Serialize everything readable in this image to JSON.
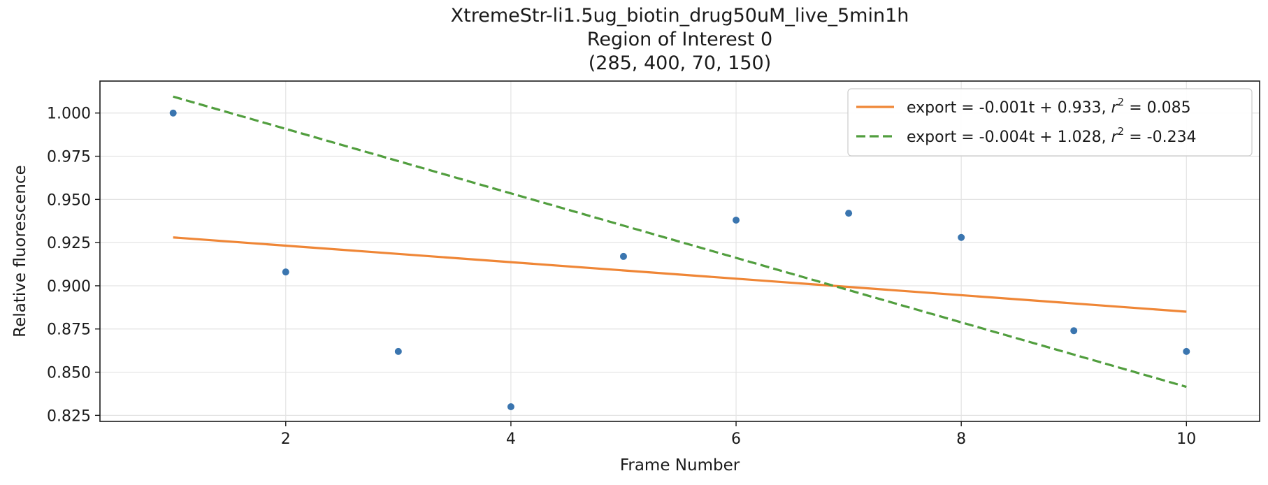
{
  "chart_data": {
    "type": "scatter",
    "title": [
      "XtremeStr-li1.5ug_biotin_drug50uM_live_5min1h",
      "Region of Interest 0",
      "(285, 400, 70, 150)"
    ],
    "xlabel": "Frame Number",
    "ylabel": "Relative fluorescence",
    "xlim": [
      0.35,
      10.65
    ],
    "ylim": [
      0.8215,
      1.0185
    ],
    "xticks": [
      2,
      4,
      6,
      8,
      10
    ],
    "yticks": [
      0.825,
      0.85,
      0.875,
      0.9,
      0.925,
      0.95,
      0.975,
      1.0
    ],
    "ytick_labels": [
      "0.825",
      "0.850",
      "0.875",
      "0.900",
      "0.925",
      "0.950",
      "0.975",
      "1.000"
    ],
    "grid": true,
    "legend_position": "top-right",
    "points": {
      "color": "#3a75af",
      "x": [
        1,
        2,
        3,
        4,
        5,
        6,
        7,
        8,
        9,
        10
      ],
      "y": [
        1.0,
        0.908,
        0.862,
        0.83,
        0.917,
        0.938,
        0.942,
        0.928,
        0.874,
        0.862
      ]
    },
    "series": [
      {
        "label_main": "export = -0.001t + 0.933, ",
        "label_r": "r",
        "label_sup": "2",
        "label_tail": " = 0.085",
        "color": "#ef8636",
        "dash": "solid",
        "x": [
          1,
          10
        ],
        "y": [
          0.928,
          0.885
        ]
      },
      {
        "label_main": "export = -0.004t + 1.028, ",
        "label_r": "r",
        "label_sup": "2",
        "label_tail": " = -0.234",
        "color": "#519e3e",
        "dash": "dashed",
        "x": [
          1,
          10
        ],
        "y": [
          1.0095,
          0.8415
        ]
      }
    ]
  }
}
